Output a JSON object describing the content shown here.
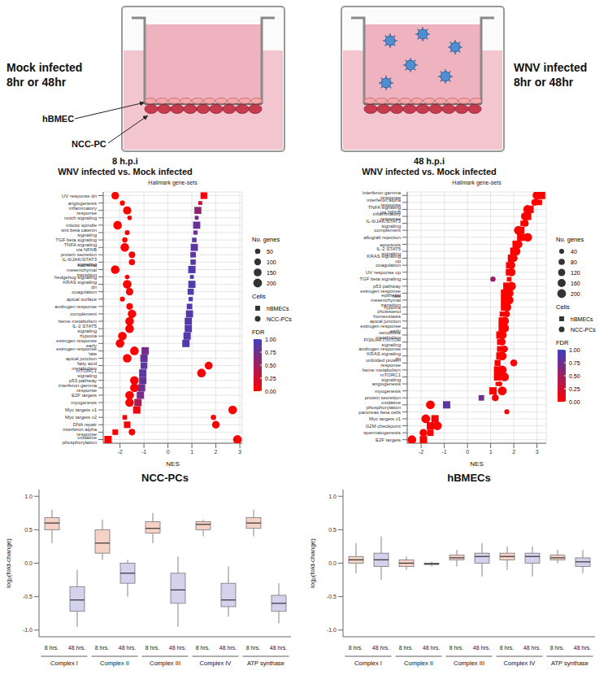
{
  "schematic": {
    "panels": [
      {
        "label": "Mock infected",
        "time": "8hr or 48hr"
      },
      {
        "label": "WNV infected",
        "time": "8hr or 48hr"
      }
    ],
    "cells": [
      "hBMEC",
      "NCC-PC"
    ]
  },
  "chart_data": [
    {
      "type": "scatter",
      "title": "8 h.p.i",
      "subtitle": "WNV infected vs. Mock infected",
      "annotations": [
        "Hallmark gene-sets"
      ],
      "x_label": "NES",
      "xlim": [
        -2.7,
        3.1
      ],
      "xticks": [
        -2,
        -1,
        0,
        1,
        2,
        3
      ],
      "grid": true,
      "categories": [
        "UV response dn",
        "angiogenesis",
        "inflammatory response",
        "notch signaling",
        "mitotic spindle",
        "wnt beta catenin signaling",
        "TGF beta signaling",
        "TNFA signaling via NFKB",
        "protein secretion",
        "IL-6/JAK/STAT3 signaling",
        "epithelial mesenchymal transition",
        "hedgehog signaling",
        "KRAS signaling dn",
        "coagulation",
        "apical surface",
        "androgen response",
        "complement",
        "heme metabolism",
        "IL-2 STAT5 signaling",
        "hypoxia",
        "estrogen response early",
        "estrogen response late",
        "apical junction",
        "fatty acid metabolism",
        "mTORC1 signaling",
        "p53 pathway",
        "interferon gamma response",
        "E2F targets",
        "myogenesis",
        "Myc targets v1",
        "Myc targets v2",
        "DNA repair",
        "interferon alpha response",
        "oxidative phosphorylation"
      ],
      "series": [
        {
          "name": "hBMECs",
          "marker": "square",
          "values": [
            1.5,
            1.35,
            1.25,
            1.2,
            1.2,
            1.15,
            1.1,
            1.1,
            1.05,
            1.05,
            1.0,
            1.0,
            1.0,
            0.95,
            0.95,
            0.9,
            0.9,
            0.85,
            0.85,
            0.8,
            0.75,
            -0.95,
            -1.0,
            -1.0,
            -1.05,
            -1.05,
            -1.1,
            -1.15,
            -1.25,
            -1.3,
            -1.8,
            -1.7,
            -2.2,
            -2.5
          ],
          "fdr": [
            0.02,
            0.3,
            0.6,
            0.75,
            0.8,
            0.8,
            0.85,
            0.85,
            0.85,
            0.85,
            0.9,
            0.9,
            0.9,
            0.9,
            0.9,
            0.9,
            0.9,
            0.9,
            0.9,
            0.9,
            0.9,
            0.7,
            0.8,
            0.85,
            0.85,
            0.8,
            0.75,
            0.7,
            0.45,
            0.1,
            0.02,
            0.02,
            0.01,
            0.0
          ],
          "genes": [
            150,
            30,
            170,
            30,
            180,
            40,
            50,
            180,
            90,
            80,
            190,
            30,
            180,
            120,
            40,
            90,
            180,
            180,
            180,
            190,
            190,
            190,
            190,
            150,
            190,
            190,
            190,
            190,
            190,
            190,
            50,
            140,
            90,
            190
          ]
        },
        {
          "name": "NCC-PCs",
          "marker": "circle",
          "values": [
            -2.2,
            -1.9,
            -1.7,
            -1.6,
            -2.1,
            -1.7,
            -1.8,
            -1.8,
            -1.5,
            -1.5,
            -2.2,
            -1.7,
            -1.7,
            -1.6,
            -1.9,
            -1.6,
            -1.5,
            -1.6,
            -1.6,
            -1.9,
            -2.0,
            -1.4,
            -1.7,
            1.7,
            1.4,
            -1.4,
            -1.4,
            -1.6,
            -1.6,
            2.7,
            1.9,
            2.0,
            -1.5,
            2.9
          ],
          "fdr": [
            0,
            0.01,
            0,
            0.02,
            0,
            0.03,
            0,
            0,
            0.02,
            0.03,
            0,
            0.03,
            0,
            0.01,
            0.03,
            0.01,
            0.01,
            0,
            0.01,
            0,
            0,
            0.02,
            0,
            0.02,
            0.03,
            0.02,
            0.01,
            0,
            0,
            0,
            0.04,
            0,
            0.02,
            0
          ],
          "genes": [
            140,
            40,
            170,
            30,
            190,
            40,
            50,
            190,
            90,
            80,
            190,
            30,
            190,
            130,
            40,
            90,
            180,
            190,
            190,
            190,
            190,
            190,
            190,
            150,
            190,
            190,
            190,
            190,
            190,
            190,
            50,
            140,
            90,
            200
          ]
        }
      ],
      "size_legend": {
        "title": "No. genes",
        "values": [
          50,
          100,
          150,
          200
        ]
      },
      "legend_title": "Cells",
      "color_bar": {
        "title": "FDR",
        "range": [
          0,
          1
        ],
        "ticks": [
          {
            "value": 0,
            "label": "0.00"
          },
          {
            "value": 0.25,
            "label": "0.25"
          },
          {
            "value": 0.5,
            "label": "0.50"
          },
          {
            "value": 0.75,
            "label": "0.75"
          },
          {
            "value": 1,
            "label": "1.00"
          }
        ],
        "colors": [
          "#ff0000",
          "#3f3fbf"
        ]
      }
    },
    {
      "type": "scatter",
      "title": "48 h.p.i",
      "subtitle": "WNV infected vs. Mock infected",
      "annotations": [
        "Hallmark gene-sets"
      ],
      "x_label": "NES",
      "xlim": [
        -2.6,
        3.4
      ],
      "xticks": [
        -2,
        -1,
        0,
        1,
        2,
        3
      ],
      "grid": true,
      "categories": [
        "interferon gamma response",
        "interferon alpha response",
        "TNFA signaling via NFKB",
        "inflammatory response",
        "IL-6/JAK/STAT3 signaling",
        "complement",
        "allograft rejection",
        "apoptosis",
        "IL-2 STAT5 signaling",
        "KRAS signaling up",
        "coagulation",
        "UV response up",
        "TGF beta signaling",
        "p53 pathway",
        "estrogen response late",
        "epithelial mesenchymal transition",
        "hypoxia",
        "cholesterol homeostasis",
        "apical junction",
        "estrogen response early",
        "xenobiotic metabolism",
        "PI3K/AKT/mTOR signaling",
        "androgen response",
        "KRAS signaling dn",
        "unfolded protein response",
        "heme metabolism",
        "mTORC1 signaling",
        "angiogenesis",
        "myogenesis",
        "protein secretion",
        "oxidative phosphorylation",
        "pancreas beta cells",
        "Myc targets v1",
        "G2M checkpoint",
        "spermatogenesis",
        "E2F targets"
      ],
      "series": [
        {
          "name": "hBMECs",
          "marker": "square",
          "values": [
            3.2,
            3.1,
            2.7,
            2.6,
            2.4,
            2.3,
            2.3,
            2.1,
            2.0,
            1.9,
            1.8,
            1.8,
            1.8,
            1.7,
            1.6,
            1.6,
            1.6,
            1.5,
            1.5,
            1.5,
            1.4,
            1.4,
            1.4,
            1.4,
            1.3,
            1.3,
            1.3,
            1.3,
            1.1,
            0.6,
            -0.9,
            null,
            -1.4,
            -1.6,
            -1.6,
            -1.9
          ],
          "fdr": [
            0,
            0,
            0,
            0,
            0,
            0,
            0,
            0,
            0,
            0,
            0,
            0,
            0,
            0,
            0,
            0,
            0,
            0,
            0,
            0,
            0,
            0,
            0,
            0,
            0.01,
            0.01,
            0.01,
            0.01,
            0.03,
            0.75,
            0.85,
            null,
            0.05,
            0.02,
            0.03,
            0
          ],
          "genes": [
            190,
            90,
            190,
            190,
            80,
            190,
            190,
            190,
            190,
            190,
            130,
            150,
            50,
            190,
            190,
            190,
            190,
            70,
            190,
            190,
            190,
            100,
            100,
            190,
            110,
            190,
            190,
            35,
            190,
            90,
            190,
            null,
            190,
            190,
            130,
            190
          ]
        },
        {
          "name": "NCC-PCs",
          "marker": "circle",
          "values": [
            3.0,
            2.9,
            2.6,
            2.5,
            2.5,
            2.2,
            2.6,
            2.2,
            2.1,
            2.0,
            1.9,
            1.9,
            1.1,
            1.9,
            1.8,
            1.8,
            1.7,
            1.7,
            1.6,
            1.6,
            1.5,
            1.5,
            1.6,
            1.5,
            2.0,
            1.5,
            1.6,
            1.4,
            1.5,
            1.2,
            -1.6,
            1.7,
            -1.8,
            -1.3,
            -1.9,
            -2.4
          ],
          "fdr": [
            0,
            0,
            0,
            0,
            0,
            0,
            0,
            0,
            0,
            0,
            0,
            0,
            0.55,
            0,
            0,
            0,
            0,
            0,
            0,
            0,
            0,
            0,
            0,
            0,
            0.01,
            0.01,
            0.01,
            0.02,
            0.02,
            0.05,
            0,
            0.03,
            0,
            0,
            0,
            0
          ],
          "genes": [
            200,
            90,
            200,
            200,
            90,
            200,
            200,
            160,
            200,
            140,
            140,
            160,
            50,
            200,
            200,
            200,
            200,
            70,
            200,
            200,
            200,
            105,
            100,
            200,
            110,
            200,
            200,
            36,
            200,
            95,
            200,
            40,
            200,
            200,
            140,
            200
          ]
        }
      ],
      "size_legend": {
        "title": "No. genes",
        "values": [
          40,
          80,
          120,
          160,
          200
        ]
      },
      "legend_title": "Cells",
      "color_bar": {
        "title": "FDR",
        "range": [
          0,
          1
        ],
        "ticks": [
          {
            "value": 0,
            "label": "0.00"
          },
          {
            "value": 0.25,
            "label": "0.25"
          },
          {
            "value": 0.5,
            "label": "0.50"
          },
          {
            "value": 0.75,
            "label": "0.75"
          },
          {
            "value": 1,
            "label": "1.00"
          }
        ],
        "colors": [
          "#ff0000",
          "#3f3fbf"
        ]
      }
    },
    {
      "type": "box",
      "title": "NCC-PCs",
      "y_label": "log₂(fold-change)",
      "ylim": [
        -1.1,
        1.1
      ],
      "yticks": [
        {
          "value": -1,
          "label": "-1.0"
        },
        -0.5,
        {
          "value": 0,
          "label": "0.0"
        },
        0.5,
        {
          "value": 1,
          "label": "1.0"
        }
      ],
      "grid": false,
      "categories": [
        "8 hrs.",
        "48 hrs.",
        "8 hrs.",
        "48 hrs.",
        "8 hrs.",
        "48 hrs.",
        "8 hrs.",
        "48 hrs.",
        "8 hrs.",
        "48 hrs."
      ],
      "groups": [
        "Complex I",
        "Complex II",
        "Complex III",
        "Complex IV",
        "ATP synthase"
      ],
      "colors": [
        "#f6d2c6",
        "#d3d1ec",
        "#f6d2c6",
        "#d3d1ec",
        "#f6d2c6",
        "#d3d1ec",
        "#f6d2c6",
        "#d3d1ec",
        "#f6d2c6",
        "#d3d1ec"
      ],
      "boxes": [
        {
          "min": 0.3,
          "q1": 0.5,
          "median": 0.6,
          "q3": 0.68,
          "max": 0.8
        },
        {
          "min": -0.95,
          "q1": -0.72,
          "median": -0.55,
          "q3": -0.35,
          "max": -0.1
        },
        {
          "min": 0.05,
          "q1": 0.15,
          "median": 0.3,
          "q3": 0.5,
          "max": 0.65
        },
        {
          "min": -0.5,
          "q1": -0.3,
          "median": -0.15,
          "q3": 0.0,
          "max": 0.05
        },
        {
          "min": 0.3,
          "q1": 0.45,
          "median": 0.52,
          "q3": 0.62,
          "max": 0.75
        },
        {
          "min": -0.95,
          "q1": -0.6,
          "median": -0.4,
          "q3": -0.15,
          "max": 0.1
        },
        {
          "min": 0.4,
          "q1": 0.5,
          "median": 0.58,
          "q3": 0.62,
          "max": 0.65
        },
        {
          "min": -0.8,
          "q1": -0.65,
          "median": -0.55,
          "q3": -0.3,
          "max": -0.05
        },
        {
          "min": 0.4,
          "q1": 0.52,
          "median": 0.6,
          "q3": 0.68,
          "max": 0.8
        },
        {
          "min": -0.9,
          "q1": -0.72,
          "median": -0.6,
          "q3": -0.48,
          "max": -0.3
        }
      ]
    },
    {
      "type": "box",
      "title": "hBMECs",
      "y_label": "log₂(fold-change)",
      "ylim": [
        -1.1,
        1.1
      ],
      "yticks": [
        {
          "value": -1,
          "label": "-1.0"
        },
        -0.5,
        {
          "value": 0,
          "label": "0.0"
        },
        0.5,
        {
          "value": 1,
          "label": "1.0"
        }
      ],
      "grid": false,
      "categories": [
        "8 hrs.",
        "48 hrs.",
        "8 hrs.",
        "48 hrs.",
        "8 hrs.",
        "48 hrs.",
        "8 hrs.",
        "48 hrs.",
        "8 hrs.",
        "48 hrs."
      ],
      "groups": [
        "Complex I",
        "Complex II",
        "Complex III",
        "Complex IV",
        "ATP synthase"
      ],
      "colors": [
        "#f6d2c6",
        "#d3d1ec",
        "#f6d2c6",
        "#d3d1ec",
        "#f6d2c6",
        "#d3d1ec",
        "#f6d2c6",
        "#d3d1ec",
        "#f6d2c6",
        "#d3d1ec"
      ],
      "boxes": [
        {
          "min": -0.15,
          "q1": 0.0,
          "median": 0.05,
          "q3": 0.1,
          "max": 0.3
        },
        {
          "min": -0.25,
          "q1": -0.05,
          "median": 0.05,
          "q3": 0.15,
          "max": 0.4
        },
        {
          "min": -0.1,
          "q1": -0.05,
          "median": 0.0,
          "q3": 0.05,
          "max": 0.1
        },
        {
          "min": -0.05,
          "q1": -0.02,
          "median": -0.01,
          "q3": 0.0,
          "max": 0.02
        },
        {
          "min": -0.05,
          "q1": 0.05,
          "median": 0.08,
          "q3": 0.12,
          "max": 0.2
        },
        {
          "min": -0.2,
          "q1": 0.0,
          "median": 0.1,
          "q3": 0.15,
          "max": 0.3
        },
        {
          "min": -0.1,
          "q1": 0.05,
          "median": 0.1,
          "q3": 0.15,
          "max": 0.25
        },
        {
          "min": -0.2,
          "q1": 0.0,
          "median": 0.1,
          "q3": 0.15,
          "max": 0.25
        },
        {
          "min": 0.0,
          "q1": 0.05,
          "median": 0.08,
          "q3": 0.12,
          "max": 0.2
        },
        {
          "min": -0.15,
          "q1": -0.05,
          "median": 0.02,
          "q3": 0.08,
          "max": 0.2
        }
      ]
    }
  ]
}
